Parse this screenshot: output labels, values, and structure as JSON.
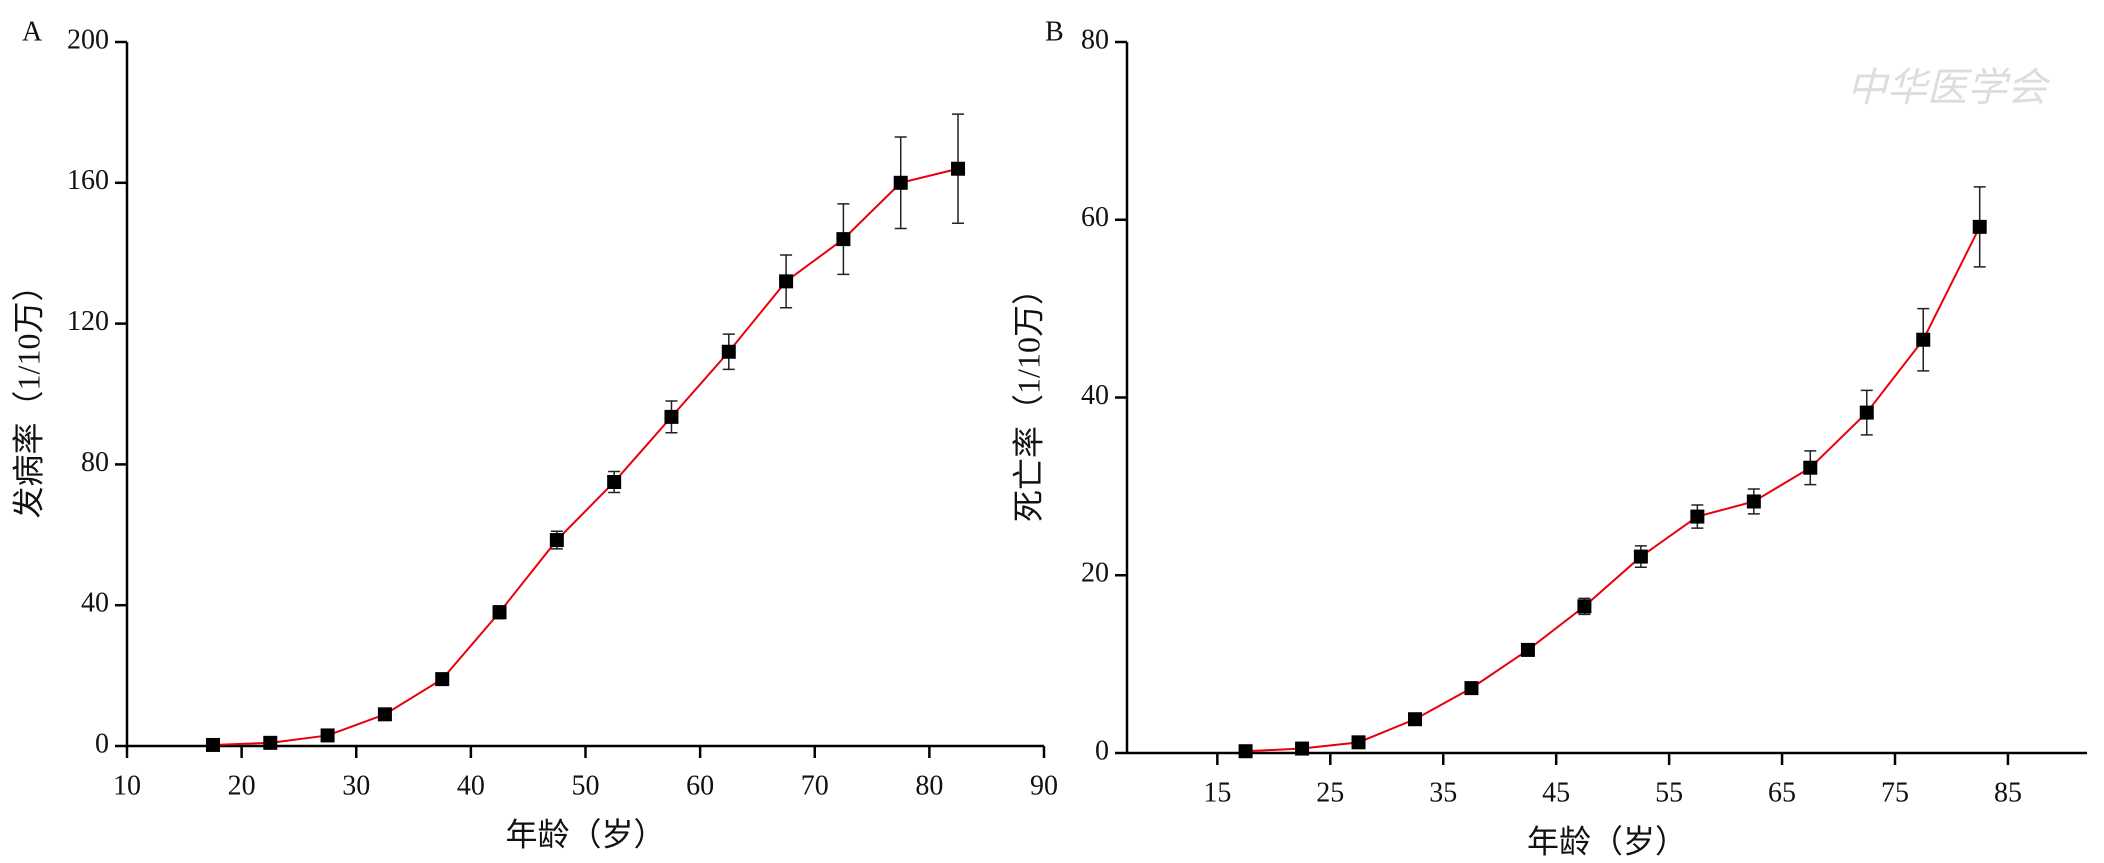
{
  "chart_data": [
    {
      "type": "line",
      "panel": "A",
      "ylabel": "发病率（1/10万）",
      "xlabel": "年龄（岁）",
      "x": [
        17.5,
        22.5,
        27.5,
        32.5,
        37.5,
        42.5,
        47.5,
        52.5,
        57.5,
        62.5,
        67.5,
        72.5,
        77.5,
        82.5
      ],
      "values": [
        0.3,
        0.9,
        3,
        9,
        19,
        38,
        58.5,
        75,
        93.5,
        112,
        132,
        144,
        160,
        164
      ],
      "errors": [
        0.2,
        0.3,
        0.5,
        0.8,
        1,
        1.8,
        2.5,
        3,
        4.5,
        5,
        7.5,
        10,
        13,
        15.5
      ],
      "color": "#e8000b",
      "marker_color": "#000000",
      "xlim": [
        10,
        90
      ],
      "xticks": [
        10,
        20,
        30,
        40,
        50,
        60,
        70,
        80,
        90
      ],
      "ylim": [
        0,
        200
      ],
      "yticks": [
        0,
        40,
        80,
        120,
        160,
        200
      ]
    },
    {
      "type": "line",
      "panel": "B",
      "ylabel": "死亡率（1/10万）",
      "xlabel": "年龄（岁）",
      "watermark": "中华医学会",
      "x": [
        17.5,
        22.5,
        27.5,
        32.5,
        37.5,
        42.5,
        47.5,
        52.5,
        57.5,
        62.5,
        67.5,
        72.5,
        77.5,
        82.5
      ],
      "values": [
        0.2,
        0.5,
        1.2,
        3.8,
        7.3,
        11.6,
        16.5,
        22.1,
        26.6,
        28.3,
        32.1,
        38.3,
        46.5,
        59.2
      ],
      "errors": [
        0.1,
        0.1,
        0.2,
        0.3,
        0.4,
        0.6,
        0.9,
        1.2,
        1.3,
        1.4,
        1.9,
        2.5,
        3.5,
        4.5
      ],
      "color": "#e8000b",
      "marker_color": "#000000",
      "xlim": [
        7,
        92
      ],
      "xticks": [
        15,
        25,
        35,
        45,
        55,
        65,
        75,
        85
      ],
      "ylim": [
        0,
        80
      ],
      "yticks": [
        0,
        20,
        40,
        60,
        80
      ]
    }
  ]
}
